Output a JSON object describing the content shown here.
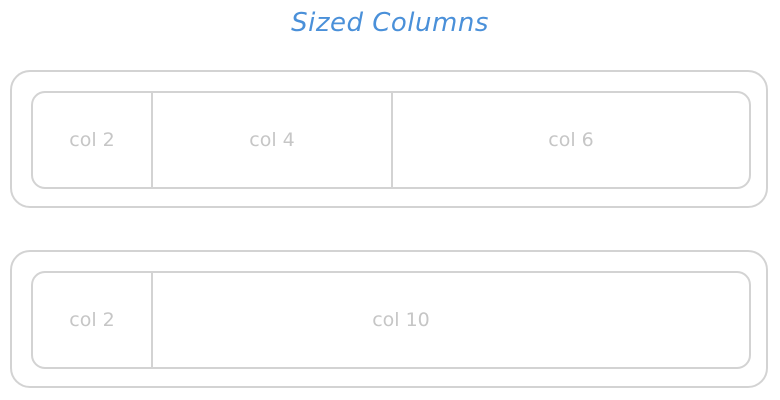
{
  "title": "Sized Columns",
  "rows": [
    {
      "columns": [
        {
          "label": "col 2"
        },
        {
          "label": "col 4"
        },
        {
          "label": "col 6"
        }
      ]
    },
    {
      "columns": [
        {
          "label": "col 2"
        },
        {
          "label": "col 10"
        }
      ]
    }
  ],
  "colors": {
    "title": "#4a90d9",
    "border": "#d3d3d3",
    "label": "#c6c6c6"
  }
}
